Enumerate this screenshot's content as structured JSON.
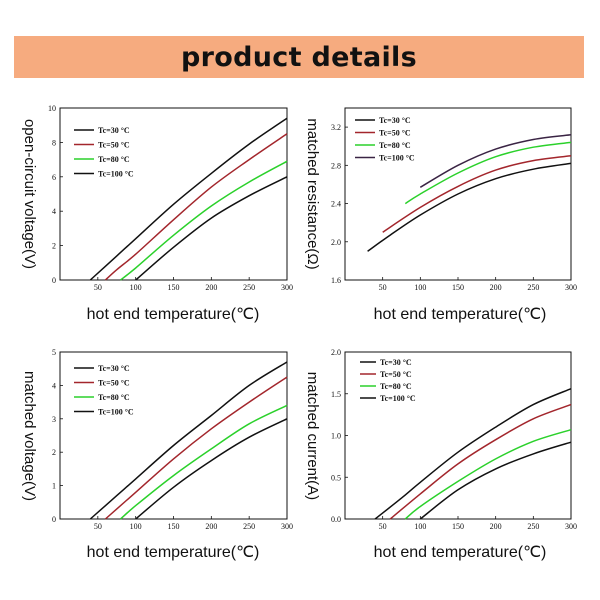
{
  "banner": {
    "title": "product details"
  },
  "colors": {
    "banner_bg": "#f6ab7f",
    "black": "#111111",
    "red": "#a3262c",
    "green": "#2bd12b",
    "purple": "#3a2444"
  },
  "chart_data": [
    {
      "type": "line",
      "ylabel": "open-circuit voltage(V)",
      "xlabel": "hot end temperature(℃)",
      "xlim": [
        0,
        300
      ],
      "ylim": [
        0,
        10
      ],
      "xticks": [
        50,
        100,
        150,
        200,
        250,
        300
      ],
      "yticks": [
        0,
        2,
        4,
        6,
        8,
        10
      ],
      "legend_position": "top-left",
      "series": [
        {
          "name": "Tc=30 °C",
          "color": "#111111",
          "x": [
            40,
            75,
            100,
            150,
            200,
            250,
            300
          ],
          "y": [
            0,
            1.4,
            2.4,
            4.4,
            6.2,
            7.9,
            9.4
          ]
        },
        {
          "name": "Tc=50 °C",
          "color": "#a3262c",
          "x": [
            60,
            75,
            100,
            150,
            200,
            250,
            300
          ],
          "y": [
            0,
            0.6,
            1.5,
            3.5,
            5.4,
            7.0,
            8.5
          ]
        },
        {
          "name": "Tc=80 °C",
          "color": "#2bd12b",
          "x": [
            80,
            100,
            150,
            200,
            250,
            300
          ],
          "y": [
            0,
            0.7,
            2.6,
            4.3,
            5.7,
            6.9
          ]
        },
        {
          "name": "Tc=100 °C",
          "color": "#111111",
          "x": [
            100,
            150,
            200,
            250,
            300
          ],
          "y": [
            0,
            1.9,
            3.6,
            4.9,
            6.0
          ]
        }
      ]
    },
    {
      "type": "line",
      "ylabel": "matched resistance(Ω)",
      "xlabel": "hot end temperature(℃)",
      "xlim": [
        0,
        300
      ],
      "ylim": [
        1.6,
        3.4
      ],
      "xticks": [
        50,
        100,
        150,
        200,
        250,
        300
      ],
      "yticks": [
        1.6,
        2.0,
        2.4,
        2.8,
        3.2
      ],
      "legend_position": "top-left",
      "series": [
        {
          "name": "Tc=30 °C",
          "color": "#111111",
          "x": [
            30,
            60,
            100,
            150,
            200,
            250,
            300
          ],
          "y": [
            1.9,
            2.07,
            2.28,
            2.5,
            2.66,
            2.76,
            2.82
          ]
        },
        {
          "name": "Tc=50 °C",
          "color": "#a3262c",
          "x": [
            50,
            100,
            150,
            200,
            250,
            300
          ],
          "y": [
            2.1,
            2.36,
            2.58,
            2.75,
            2.85,
            2.9
          ]
        },
        {
          "name": "Tc=80 °C",
          "color": "#2bd12b",
          "x": [
            80,
            100,
            150,
            200,
            250,
            300
          ],
          "y": [
            2.4,
            2.5,
            2.72,
            2.89,
            2.99,
            3.04
          ]
        },
        {
          "name": "Tc=100 °C",
          "color": "#3a2444",
          "x": [
            100,
            150,
            200,
            250,
            300
          ],
          "y": [
            2.57,
            2.8,
            2.97,
            3.07,
            3.12
          ]
        }
      ]
    },
    {
      "type": "line",
      "ylabel": "matched voltage(V)",
      "xlabel": "hot end temperature(℃)",
      "xlim": [
        0,
        300
      ],
      "ylim": [
        0,
        5
      ],
      "xticks": [
        50,
        100,
        150,
        200,
        250,
        300
      ],
      "yticks": [
        0,
        1,
        2,
        3,
        4,
        5
      ],
      "legend_position": "top-left",
      "series": [
        {
          "name": "Tc=30 °C",
          "color": "#111111",
          "x": [
            40,
            75,
            100,
            150,
            200,
            250,
            300
          ],
          "y": [
            0,
            0.7,
            1.2,
            2.2,
            3.1,
            4.0,
            4.7
          ]
        },
        {
          "name": "Tc=50 °C",
          "color": "#a3262c",
          "x": [
            60,
            100,
            150,
            200,
            250,
            300
          ],
          "y": [
            0,
            0.8,
            1.8,
            2.7,
            3.5,
            4.25
          ]
        },
        {
          "name": "Tc=80 °C",
          "color": "#2bd12b",
          "x": [
            80,
            100,
            150,
            200,
            250,
            300
          ],
          "y": [
            0,
            0.4,
            1.3,
            2.1,
            2.85,
            3.4
          ]
        },
        {
          "name": "Tc=100 °C",
          "color": "#111111",
          "x": [
            100,
            150,
            200,
            250,
            300
          ],
          "y": [
            0,
            0.95,
            1.75,
            2.45,
            3.0
          ]
        }
      ]
    },
    {
      "type": "line",
      "ylabel": "matched current(A)",
      "xlabel": "hot end temperature(℃)",
      "xlim": [
        0,
        300
      ],
      "ylim": [
        0,
        2.0
      ],
      "xticks": [
        50,
        100,
        150,
        200,
        250,
        300
      ],
      "yticks": [
        0.0,
        0.5,
        1.0,
        1.5,
        2.0
      ],
      "legend_position": "top-left",
      "series": [
        {
          "name": "Tc=30 °C",
          "color": "#111111",
          "x": [
            40,
            75,
            100,
            150,
            200,
            250,
            300
          ],
          "y": [
            0,
            0.25,
            0.44,
            0.8,
            1.1,
            1.37,
            1.56
          ]
        },
        {
          "name": "Tc=50 °C",
          "color": "#a3262c",
          "x": [
            60,
            100,
            150,
            200,
            250,
            300
          ],
          "y": [
            0,
            0.3,
            0.66,
            0.95,
            1.2,
            1.37
          ]
        },
        {
          "name": "Tc=80 °C",
          "color": "#2bd12b",
          "x": [
            80,
            100,
            150,
            200,
            250,
            300
          ],
          "y": [
            0,
            0.15,
            0.45,
            0.72,
            0.93,
            1.07
          ]
        },
        {
          "name": "Tc=100 °C",
          "color": "#111111",
          "x": [
            100,
            150,
            200,
            250,
            300
          ],
          "y": [
            0,
            0.35,
            0.6,
            0.78,
            0.92
          ]
        }
      ]
    }
  ]
}
